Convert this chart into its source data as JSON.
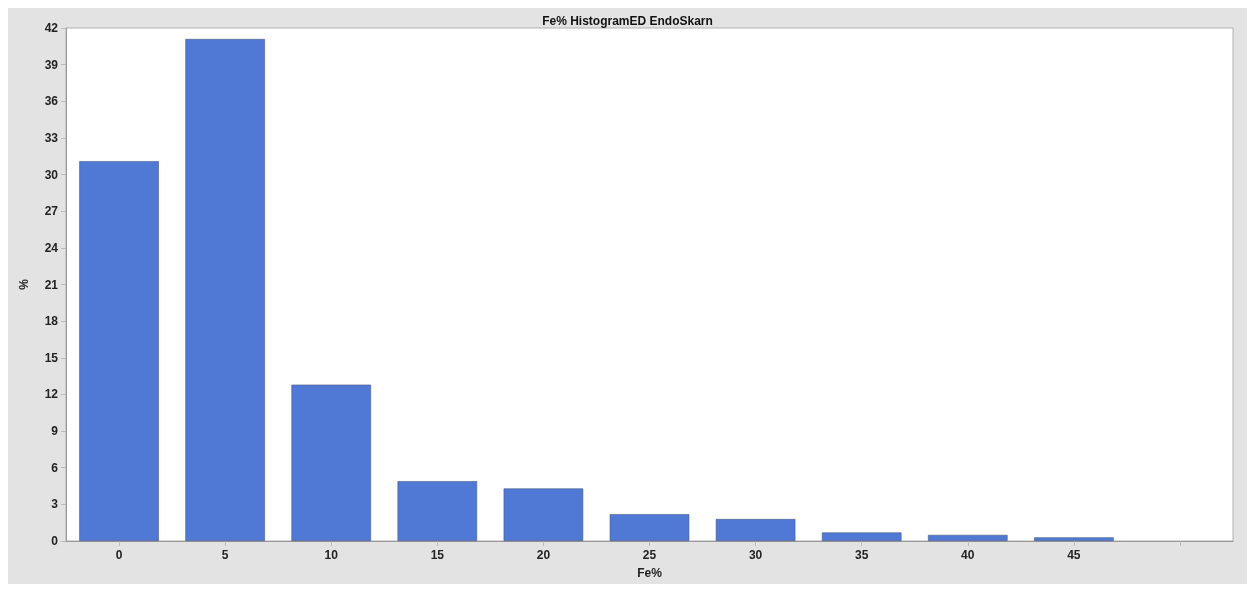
{
  "chart_data": {
    "type": "bar",
    "title": "Fe% HistogramED EndoSkarn",
    "xlabel": "Fe%",
    "ylabel": "%",
    "categories": [
      "0",
      "5",
      "10",
      "15",
      "20",
      "25",
      "30",
      "35",
      "40",
      "45",
      null
    ],
    "values": [
      31.1,
      41.1,
      12.8,
      4.9,
      4.3,
      2.2,
      1.8,
      0.7,
      0.5,
      0.3,
      null
    ],
    "color": "#5079d5",
    "ylim": [
      0,
      42
    ],
    "yticks": [
      0,
      3,
      6,
      9,
      12,
      15,
      18,
      21,
      24,
      27,
      30,
      33,
      36,
      39,
      42
    ],
    "grid": false
  }
}
